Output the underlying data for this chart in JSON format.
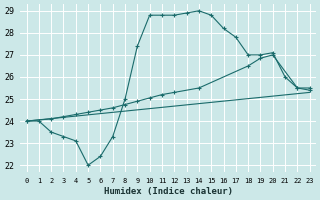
{
  "xlabel": "Humidex (Indice chaleur)",
  "xlim": [
    -0.5,
    23.5
  ],
  "ylim": [
    21.7,
    29.3
  ],
  "yticks": [
    22,
    23,
    24,
    25,
    26,
    27,
    28,
    29
  ],
  "xticks": [
    0,
    1,
    2,
    3,
    4,
    5,
    6,
    7,
    8,
    9,
    10,
    11,
    12,
    13,
    14,
    15,
    16,
    17,
    18,
    19,
    20,
    21,
    22,
    23
  ],
  "bg_color": "#cce8e8",
  "grid_color": "#aad4d4",
  "line_color": "#1a6b6b",
  "line1_x": [
    0,
    1,
    2,
    3,
    4,
    5,
    6,
    7,
    8,
    9,
    10,
    11,
    12,
    13,
    14,
    15,
    16,
    17,
    18,
    19,
    20,
    21,
    22,
    23
  ],
  "line1_y": [
    24.0,
    24.0,
    23.5,
    23.3,
    23.1,
    22.0,
    22.4,
    23.3,
    25.0,
    27.4,
    28.8,
    28.8,
    28.8,
    28.9,
    29.0,
    28.8,
    28.2,
    27.8,
    27.0,
    27.0,
    27.1,
    26.0,
    25.5,
    25.5
  ],
  "line2_x": [
    0,
    2,
    3,
    4,
    5,
    6,
    7,
    8,
    9,
    10,
    11,
    12,
    14,
    18,
    19,
    20,
    22,
    23
  ],
  "line2_y": [
    24.0,
    24.1,
    24.2,
    24.3,
    24.4,
    24.5,
    24.6,
    24.75,
    24.9,
    25.05,
    25.2,
    25.3,
    25.5,
    26.5,
    26.85,
    27.0,
    25.5,
    25.4
  ],
  "line3_x": [
    0,
    23
  ],
  "line3_y": [
    24.0,
    25.3
  ]
}
